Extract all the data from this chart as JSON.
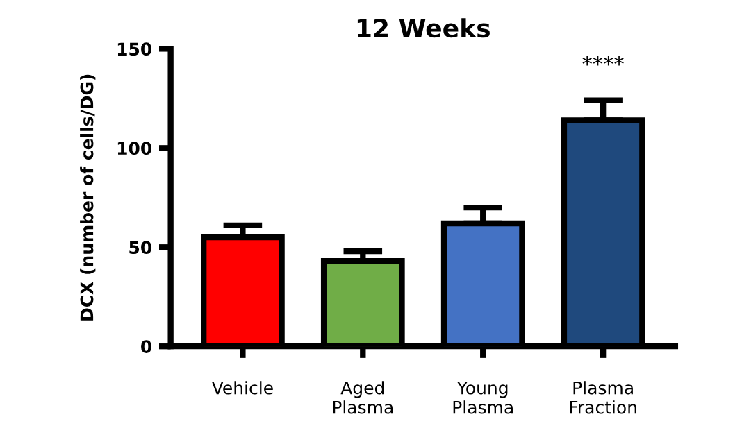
{
  "chart_data": {
    "type": "bar",
    "title": "12 Weeks",
    "ylabel": "DCX (number of cells/DG)",
    "categories": [
      "Vehicle",
      "Aged\nPlasma",
      "Young\nPlasma",
      "Plasma\nFraction"
    ],
    "values": [
      55,
      43,
      62,
      114
    ],
    "colors": [
      "#ff0000",
      "#70ad47",
      "#4472c4",
      "#1f497d"
    ],
    "errors": [
      [
        55,
        61
      ],
      [
        43,
        48
      ],
      [
        62,
        70
      ],
      [
        114,
        124
      ]
    ],
    "annotations": [
      "****"
    ],
    "ylim": [
      0,
      150
    ],
    "yticks": [
      0,
      50,
      100,
      150
    ],
    "grid": false,
    "legend": false
  }
}
